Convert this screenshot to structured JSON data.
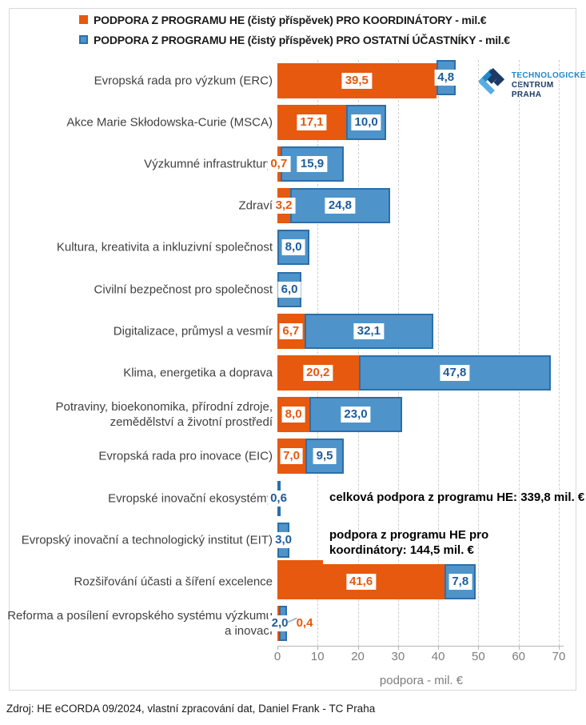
{
  "source": "Zdroj: HE eCORDA 09/2024, vlastní zpracování dat, Daniel Frank - TC Praha",
  "logo": {
    "line1": "TECHNOLOGICKÉ",
    "line2": "CENTRUM PRAHA",
    "color_light": "#2187CB",
    "color_dark": "#1B3A66"
  },
  "annotations": {
    "total": "celková podpora z programu HE: 339,8 mil. €",
    "coordinators": "podpora z programu HE pro koordinátory: 144,5 mil. €"
  },
  "chart_data": {
    "type": "bar",
    "orientation": "horizontal",
    "stacked": true,
    "grid": "vertical-dashed",
    "legend_position": "top",
    "xlabel": "podpora  - mil. €",
    "xlim": [
      0,
      70
    ],
    "xticks": [
      0,
      10,
      20,
      30,
      40,
      50,
      60,
      70
    ],
    "categories": [
      "Evropská rada pro výzkum (ERC)",
      "Akce Marie Skłodowska-Curie (MSCA)",
      "Výzkumné infrastruktury",
      "Zdraví",
      "Kultura, kreativita a inkluzivní společnost",
      "Civilní bezpečnost pro společnost",
      "Digitalizace, průmysl a vesmír",
      "Klima, energetika a doprava",
      "Potraviny, bioekonomika, přírodní zdroje, zemědělství a životní prostředí",
      "Evropská rada pro inovace (EIC)",
      "Evropské inovační ekosystémy",
      "Evropský inovační a technologický institut (EIT)",
      "Rozšiřování účasti a šíření excelence",
      "Reforma a posílení evropského systému výzkumu a inovací"
    ],
    "series": [
      {
        "id": "coordinator",
        "name": "PODPORA Z PROGRAMU HE (čistý příspěvek) PRO KOORDINÁTORY - mil.€",
        "color": "#E6590E",
        "label_color": "#E6590E",
        "values": [
          39.5,
          17.1,
          0.7,
          3.2,
          0,
          0,
          6.7,
          20.2,
          8.0,
          7.0,
          0,
          0,
          41.6,
          0.4
        ]
      },
      {
        "id": "others",
        "name": "PODPORA Z PROGRAMU HE (čistý příspěvek) PRO OSTATNÍ ÚČASTNÍKY - mil.€",
        "color": "#4E94CB",
        "border_color": "#2B6FA9",
        "label_color": "#1D5C9E",
        "values": [
          4.8,
          10.0,
          15.9,
          24.8,
          8.0,
          6.0,
          32.1,
          47.8,
          23.0,
          9.5,
          0.6,
          3.0,
          7.8,
          2.0
        ]
      }
    ]
  }
}
